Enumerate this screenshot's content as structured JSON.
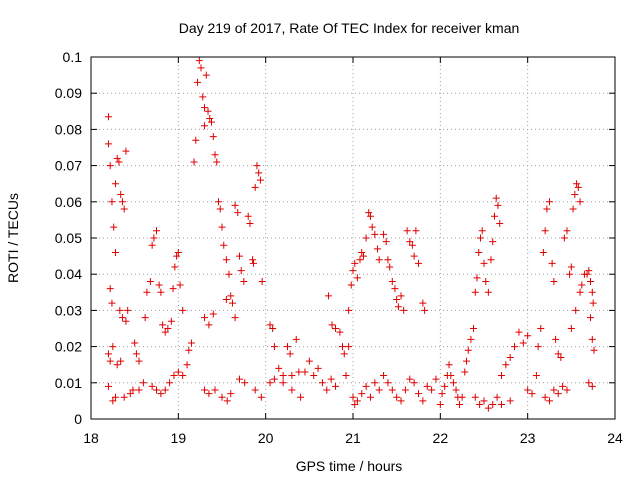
{
  "chart_data": {
    "type": "scatter",
    "title": "Day 219 of 2017, Rate Of TEC Index for receiver kman",
    "xlabel": "GPS time / hours",
    "ylabel": "ROTI / TECUs",
    "xlim": [
      18,
      24
    ],
    "ylim": [
      0,
      0.1
    ],
    "xticks": [
      "18",
      "19",
      "20",
      "21",
      "22",
      "23",
      "24"
    ],
    "yticks": [
      "0",
      "0.01",
      "0.02",
      "0.03",
      "0.04",
      "0.05",
      "0.06",
      "0.07",
      "0.08",
      "0.09",
      "0.1"
    ],
    "grid": true,
    "marker": "+",
    "color": "#e00000",
    "series": [
      {
        "values": [
          [
            18.2,
            0.0835
          ],
          [
            18.2,
            0.076
          ],
          [
            18.22,
            0.07
          ],
          [
            18.24,
            0.06
          ],
          [
            18.26,
            0.053
          ],
          [
            18.28,
            0.046
          ],
          [
            18.22,
            0.036
          ],
          [
            18.24,
            0.032
          ],
          [
            18.2,
            0.018
          ],
          [
            18.22,
            0.016
          ],
          [
            18.25,
            0.02
          ],
          [
            18.2,
            0.009
          ],
          [
            18.25,
            0.005
          ],
          [
            18.28,
            0.006
          ],
          [
            18.3,
            0.072
          ],
          [
            18.32,
            0.071
          ],
          [
            18.28,
            0.065
          ],
          [
            18.34,
            0.062
          ],
          [
            18.36,
            0.06
          ],
          [
            18.4,
            0.074
          ],
          [
            18.38,
            0.058
          ],
          [
            18.33,
            0.03
          ],
          [
            18.36,
            0.028
          ],
          [
            18.4,
            0.027
          ],
          [
            18.42,
            0.03
          ],
          [
            18.3,
            0.015
          ],
          [
            18.34,
            0.016
          ],
          [
            18.38,
            0.006
          ],
          [
            18.45,
            0.007
          ],
          [
            18.5,
            0.021
          ],
          [
            18.52,
            0.018
          ],
          [
            18.55,
            0.016
          ],
          [
            18.48,
            0.008
          ],
          [
            18.55,
            0.008
          ],
          [
            18.6,
            0.01
          ],
          [
            18.62,
            0.028
          ],
          [
            18.64,
            0.035
          ],
          [
            18.68,
            0.038
          ],
          [
            18.7,
            0.048
          ],
          [
            18.72,
            0.05
          ],
          [
            18.75,
            0.052
          ],
          [
            18.7,
            0.009
          ],
          [
            18.75,
            0.008
          ],
          [
            18.78,
            0.037
          ],
          [
            18.8,
            0.035
          ],
          [
            18.82,
            0.026
          ],
          [
            18.85,
            0.024
          ],
          [
            18.88,
            0.025
          ],
          [
            18.8,
            0.007
          ],
          [
            18.85,
            0.008
          ],
          [
            18.9,
            0.01
          ],
          [
            18.92,
            0.027
          ],
          [
            18.94,
            0.036
          ],
          [
            18.96,
            0.042
          ],
          [
            18.98,
            0.045
          ],
          [
            19.0,
            0.046
          ],
          [
            18.95,
            0.012
          ],
          [
            19.0,
            0.013
          ],
          [
            19.02,
            0.037
          ],
          [
            19.05,
            0.03
          ],
          [
            19.05,
            0.012
          ],
          [
            19.1,
            0.015
          ],
          [
            19.12,
            0.019
          ],
          [
            19.15,
            0.021
          ],
          [
            19.18,
            0.071
          ],
          [
            19.2,
            0.077
          ],
          [
            19.22,
            0.093
          ],
          [
            19.24,
            0.099
          ],
          [
            19.26,
            0.097
          ],
          [
            19.28,
            0.089
          ],
          [
            19.3,
            0.086
          ],
          [
            19.3,
            0.081
          ],
          [
            19.32,
            0.095
          ],
          [
            19.34,
            0.085
          ],
          [
            19.36,
            0.083
          ],
          [
            19.38,
            0.082
          ],
          [
            19.4,
            0.078
          ],
          [
            19.42,
            0.073
          ],
          [
            19.44,
            0.071
          ],
          [
            19.46,
            0.06
          ],
          [
            19.48,
            0.058
          ],
          [
            19.3,
            0.028
          ],
          [
            19.35,
            0.026
          ],
          [
            19.4,
            0.029
          ],
          [
            19.3,
            0.008
          ],
          [
            19.35,
            0.007
          ],
          [
            19.42,
            0.008
          ],
          [
            19.5,
            0.053
          ],
          [
            19.52,
            0.048
          ],
          [
            19.55,
            0.044
          ],
          [
            19.58,
            0.04
          ],
          [
            19.6,
            0.034
          ],
          [
            19.62,
            0.032
          ],
          [
            19.65,
            0.028
          ],
          [
            19.55,
            0.033
          ],
          [
            19.5,
            0.006
          ],
          [
            19.56,
            0.005
          ],
          [
            19.6,
            0.007
          ],
          [
            19.65,
            0.059
          ],
          [
            19.68,
            0.057
          ],
          [
            19.7,
            0.045
          ],
          [
            19.72,
            0.041
          ],
          [
            19.75,
            0.038
          ],
          [
            19.7,
            0.011
          ],
          [
            19.76,
            0.01
          ],
          [
            19.8,
            0.056
          ],
          [
            19.82,
            0.054
          ],
          [
            19.85,
            0.044
          ],
          [
            19.86,
            0.043
          ],
          [
            19.88,
            0.064
          ],
          [
            19.9,
            0.07
          ],
          [
            19.92,
            0.068
          ],
          [
            19.94,
            0.066
          ],
          [
            19.96,
            0.038
          ],
          [
            19.88,
            0.008
          ],
          [
            19.95,
            0.006
          ],
          [
            20.05,
            0.026
          ],
          [
            20.08,
            0.025
          ],
          [
            20.1,
            0.02
          ],
          [
            20.15,
            0.014
          ],
          [
            20.2,
            0.012
          ],
          [
            20.25,
            0.02
          ],
          [
            20.28,
            0.018
          ],
          [
            20.3,
            0.012
          ],
          [
            20.35,
            0.022
          ],
          [
            20.38,
            0.013
          ],
          [
            20.05,
            0.01
          ],
          [
            20.1,
            0.011
          ],
          [
            20.2,
            0.01
          ],
          [
            20.3,
            0.008
          ],
          [
            20.4,
            0.006
          ],
          [
            20.45,
            0.013
          ],
          [
            20.5,
            0.016
          ],
          [
            20.55,
            0.012
          ],
          [
            20.6,
            0.014
          ],
          [
            20.65,
            0.01
          ],
          [
            20.7,
            0.008
          ],
          [
            20.75,
            0.011
          ],
          [
            20.8,
            0.009
          ],
          [
            20.72,
            0.034
          ],
          [
            20.76,
            0.026
          ],
          [
            20.8,
            0.025
          ],
          [
            20.85,
            0.024
          ],
          [
            20.88,
            0.02
          ],
          [
            20.9,
            0.018
          ],
          [
            20.95,
            0.02
          ],
          [
            20.92,
            0.012
          ],
          [
            20.95,
            0.03
          ],
          [
            20.98,
            0.037
          ],
          [
            21.0,
            0.041
          ],
          [
            21.02,
            0.043
          ],
          [
            21.05,
            0.039
          ],
          [
            21.08,
            0.044
          ],
          [
            21.1,
            0.046
          ],
          [
            21.12,
            0.045
          ],
          [
            21.15,
            0.05
          ],
          [
            21.18,
            0.057
          ],
          [
            21.2,
            0.056
          ],
          [
            21.22,
            0.053
          ],
          [
            21.25,
            0.051
          ],
          [
            21.28,
            0.047
          ],
          [
            21.3,
            0.044
          ],
          [
            21.0,
            0.006
          ],
          [
            21.02,
            0.004
          ],
          [
            21.05,
            0.005
          ],
          [
            21.1,
            0.007
          ],
          [
            21.15,
            0.009
          ],
          [
            21.2,
            0.006
          ],
          [
            21.25,
            0.01
          ],
          [
            21.3,
            0.008
          ],
          [
            21.35,
            0.012
          ],
          [
            21.4,
            0.01
          ],
          [
            21.45,
            0.008
          ],
          [
            21.35,
            0.051
          ],
          [
            21.38,
            0.049
          ],
          [
            21.4,
            0.044
          ],
          [
            21.42,
            0.042
          ],
          [
            21.45,
            0.038
          ],
          [
            21.48,
            0.036
          ],
          [
            21.5,
            0.033
          ],
          [
            21.52,
            0.031
          ],
          [
            21.55,
            0.034
          ],
          [
            21.58,
            0.03
          ],
          [
            21.5,
            0.006
          ],
          [
            21.55,
            0.005
          ],
          [
            21.6,
            0.008
          ],
          [
            21.62,
            0.052
          ],
          [
            21.65,
            0.049
          ],
          [
            21.68,
            0.048
          ],
          [
            21.7,
            0.045
          ],
          [
            21.72,
            0.052
          ],
          [
            21.75,
            0.043
          ],
          [
            21.8,
            0.032
          ],
          [
            21.82,
            0.03
          ],
          [
            21.65,
            0.011
          ],
          [
            21.7,
            0.01
          ],
          [
            21.75,
            0.007
          ],
          [
            21.8,
            0.005
          ],
          [
            21.85,
            0.009
          ],
          [
            21.9,
            0.008
          ],
          [
            21.95,
            0.011
          ],
          [
            22.0,
            0.004
          ],
          [
            22.02,
            0.007
          ],
          [
            22.05,
            0.009
          ],
          [
            22.08,
            0.012
          ],
          [
            22.1,
            0.015
          ],
          [
            22.12,
            0.012
          ],
          [
            22.15,
            0.01
          ],
          [
            22.18,
            0.008
          ],
          [
            22.2,
            0.006
          ],
          [
            22.22,
            0.004
          ],
          [
            22.25,
            0.006
          ],
          [
            22.28,
            0.013
          ],
          [
            22.3,
            0.016
          ],
          [
            22.32,
            0.019
          ],
          [
            22.35,
            0.022
          ],
          [
            22.38,
            0.025
          ],
          [
            22.4,
            0.035
          ],
          [
            22.42,
            0.039
          ],
          [
            22.44,
            0.046
          ],
          [
            22.46,
            0.05
          ],
          [
            22.48,
            0.052
          ],
          [
            22.5,
            0.043
          ],
          [
            22.52,
            0.038
          ],
          [
            22.55,
            0.035
          ],
          [
            22.58,
            0.044
          ],
          [
            22.6,
            0.049
          ],
          [
            22.62,
            0.056
          ],
          [
            22.64,
            0.061
          ],
          [
            22.66,
            0.059
          ],
          [
            22.68,
            0.054
          ],
          [
            22.4,
            0.006
          ],
          [
            22.45,
            0.004
          ],
          [
            22.5,
            0.005
          ],
          [
            22.55,
            0.003
          ],
          [
            22.6,
            0.004
          ],
          [
            22.65,
            0.006
          ],
          [
            22.7,
            0.012
          ],
          [
            22.75,
            0.015
          ],
          [
            22.8,
            0.017
          ],
          [
            22.85,
            0.02
          ],
          [
            22.9,
            0.024
          ],
          [
            22.95,
            0.021
          ],
          [
            23.0,
            0.023
          ],
          [
            22.7,
            0.004
          ],
          [
            22.8,
            0.005
          ],
          [
            23.0,
            0.008
          ],
          [
            23.05,
            0.007
          ],
          [
            23.1,
            0.012
          ],
          [
            23.12,
            0.02
          ],
          [
            23.15,
            0.025
          ],
          [
            23.18,
            0.046
          ],
          [
            23.2,
            0.052
          ],
          [
            23.22,
            0.058
          ],
          [
            23.25,
            0.06
          ],
          [
            23.28,
            0.043
          ],
          [
            23.3,
            0.038
          ],
          [
            23.32,
            0.022
          ],
          [
            23.35,
            0.018
          ],
          [
            23.38,
            0.017
          ],
          [
            23.2,
            0.006
          ],
          [
            23.25,
            0.005
          ],
          [
            23.3,
            0.008
          ],
          [
            23.35,
            0.007
          ],
          [
            23.4,
            0.009
          ],
          [
            23.45,
            0.008
          ],
          [
            23.42,
            0.05
          ],
          [
            23.45,
            0.052
          ],
          [
            23.48,
            0.04
          ],
          [
            23.5,
            0.042
          ],
          [
            23.52,
            0.058
          ],
          [
            23.54,
            0.062
          ],
          [
            23.56,
            0.065
          ],
          [
            23.58,
            0.064
          ],
          [
            23.6,
            0.06
          ],
          [
            23.5,
            0.025
          ],
          [
            23.55,
            0.03
          ],
          [
            23.6,
            0.035
          ],
          [
            23.62,
            0.037
          ],
          [
            23.65,
            0.04
          ],
          [
            23.68,
            0.04
          ],
          [
            23.7,
            0.041
          ],
          [
            23.72,
            0.038
          ],
          [
            23.74,
            0.035
          ],
          [
            23.75,
            0.032
          ],
          [
            23.72,
            0.028
          ],
          [
            23.74,
            0.022
          ],
          [
            23.76,
            0.019
          ],
          [
            23.7,
            0.01
          ],
          [
            23.74,
            0.009
          ]
        ]
      }
    ]
  }
}
